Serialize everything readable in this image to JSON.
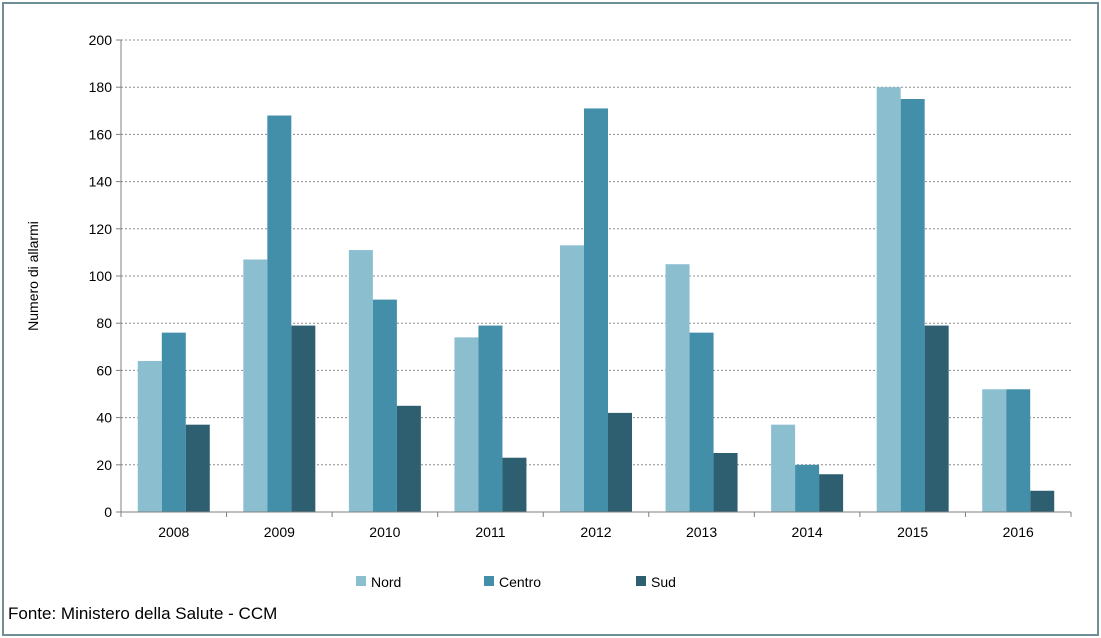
{
  "source_note": "Fonte: Ministero della Salute - CCM",
  "chart_data": {
    "type": "bar",
    "categories": [
      "2008",
      "2009",
      "2010",
      "2011",
      "2012",
      "2013",
      "2014",
      "2015",
      "2016"
    ],
    "series": [
      {
        "name": "Nord",
        "color": "#8bbfd0",
        "values": [
          64,
          107,
          111,
          74,
          113,
          105,
          37,
          180,
          52
        ]
      },
      {
        "name": "Centro",
        "color": "#438ea8",
        "values": [
          76,
          168,
          90,
          79,
          171,
          76,
          20,
          175,
          52
        ]
      },
      {
        "name": "Sud",
        "color": "#2e5f70",
        "values": [
          37,
          79,
          45,
          23,
          42,
          25,
          16,
          79,
          9
        ]
      }
    ],
    "ylabel": "Numero di allarmi",
    "xlabel": "",
    "ylim": [
      0,
      200
    ],
    "yticks": [
      0,
      20,
      40,
      60,
      80,
      100,
      120,
      140,
      160,
      180,
      200
    ],
    "grid": true,
    "legend_position": "bottom"
  }
}
